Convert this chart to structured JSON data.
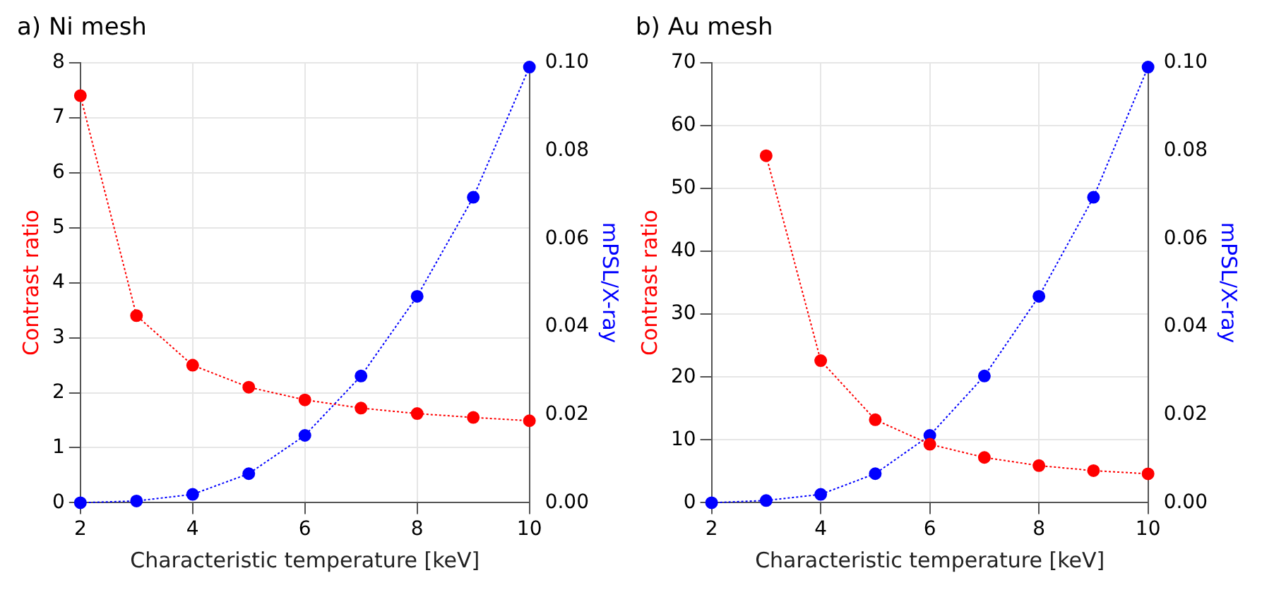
{
  "chart_data": [
    {
      "type": "line",
      "title": "a) Ni mesh",
      "xlabel": "Characteristic temperature [keV]",
      "ylabel": "Contrast ratio",
      "y2label": "mPSL/X-ray",
      "x": [
        2,
        3,
        4,
        5,
        6,
        7,
        8,
        9,
        10
      ],
      "series": [
        {
          "color": "#ff0000",
          "values": [
            7.4,
            3.4,
            2.5,
            2.1,
            1.87,
            1.72,
            1.62,
            1.55,
            1.49
          ]
        },
        {
          "color": "#0000ff",
          "axis": "y2",
          "values": [
            0,
            0.0004,
            0.0019,
            0.0066,
            0.0153,
            0.0288,
            0.0469,
            0.0694,
            0.099
          ]
        }
      ],
      "xlim": [
        2,
        10
      ],
      "xticks": [
        2,
        4,
        6,
        8,
        10
      ],
      "ylim": [
        0,
        8
      ],
      "yticks": [
        0,
        1,
        2,
        3,
        4,
        5,
        6,
        7,
        8
      ],
      "y2lim": [
        0,
        0.1
      ],
      "y2ticks": [
        {
          "value": 0,
          "label": "0.00"
        },
        {
          "value": 0.02,
          "label": "0.02"
        },
        {
          "value": 0.04,
          "label": "0.04"
        },
        {
          "value": 0.06,
          "label": "0.06"
        },
        {
          "value": 0.08,
          "label": "0.08"
        },
        {
          "value": 0.1,
          "label": "0.10"
        }
      ],
      "grid": true,
      "legend": false,
      "marker": "circle",
      "line_style": "dotted"
    },
    {
      "type": "line",
      "title": "b) Au mesh",
      "xlabel": "Characteristic temperature [keV]",
      "ylabel": "Contrast ratio",
      "y2label": "mPSL/X-ray",
      "x": [
        2,
        3,
        4,
        5,
        6,
        7,
        8,
        9,
        10
      ],
      "series": [
        {
          "color": "#ff0000",
          "values": [
            null,
            55.2,
            22.6,
            13.2,
            9.3,
            7.2,
            5.9,
            5.1,
            4.6
          ]
        },
        {
          "color": "#0000ff",
          "axis": "y2",
          "values": [
            0,
            0.0005,
            0.0019,
            0.0066,
            0.0153,
            0.0288,
            0.0469,
            0.0694,
            0.099
          ]
        }
      ],
      "xlim": [
        2,
        10
      ],
      "xticks": [
        2,
        4,
        6,
        8,
        10
      ],
      "ylim": [
        0,
        70
      ],
      "yticks": [
        0,
        10,
        20,
        30,
        40,
        50,
        60,
        70
      ],
      "y2lim": [
        0,
        0.1
      ],
      "y2ticks": [
        {
          "value": 0,
          "label": "0.00"
        },
        {
          "value": 0.02,
          "label": "0.02"
        },
        {
          "value": 0.04,
          "label": "0.04"
        },
        {
          "value": 0.06,
          "label": "0.06"
        },
        {
          "value": 0.08,
          "label": "0.08"
        },
        {
          "value": 0.1,
          "label": "0.10"
        }
      ],
      "grid": true,
      "legend": false,
      "marker": "circle",
      "line_style": "dotted"
    }
  ]
}
